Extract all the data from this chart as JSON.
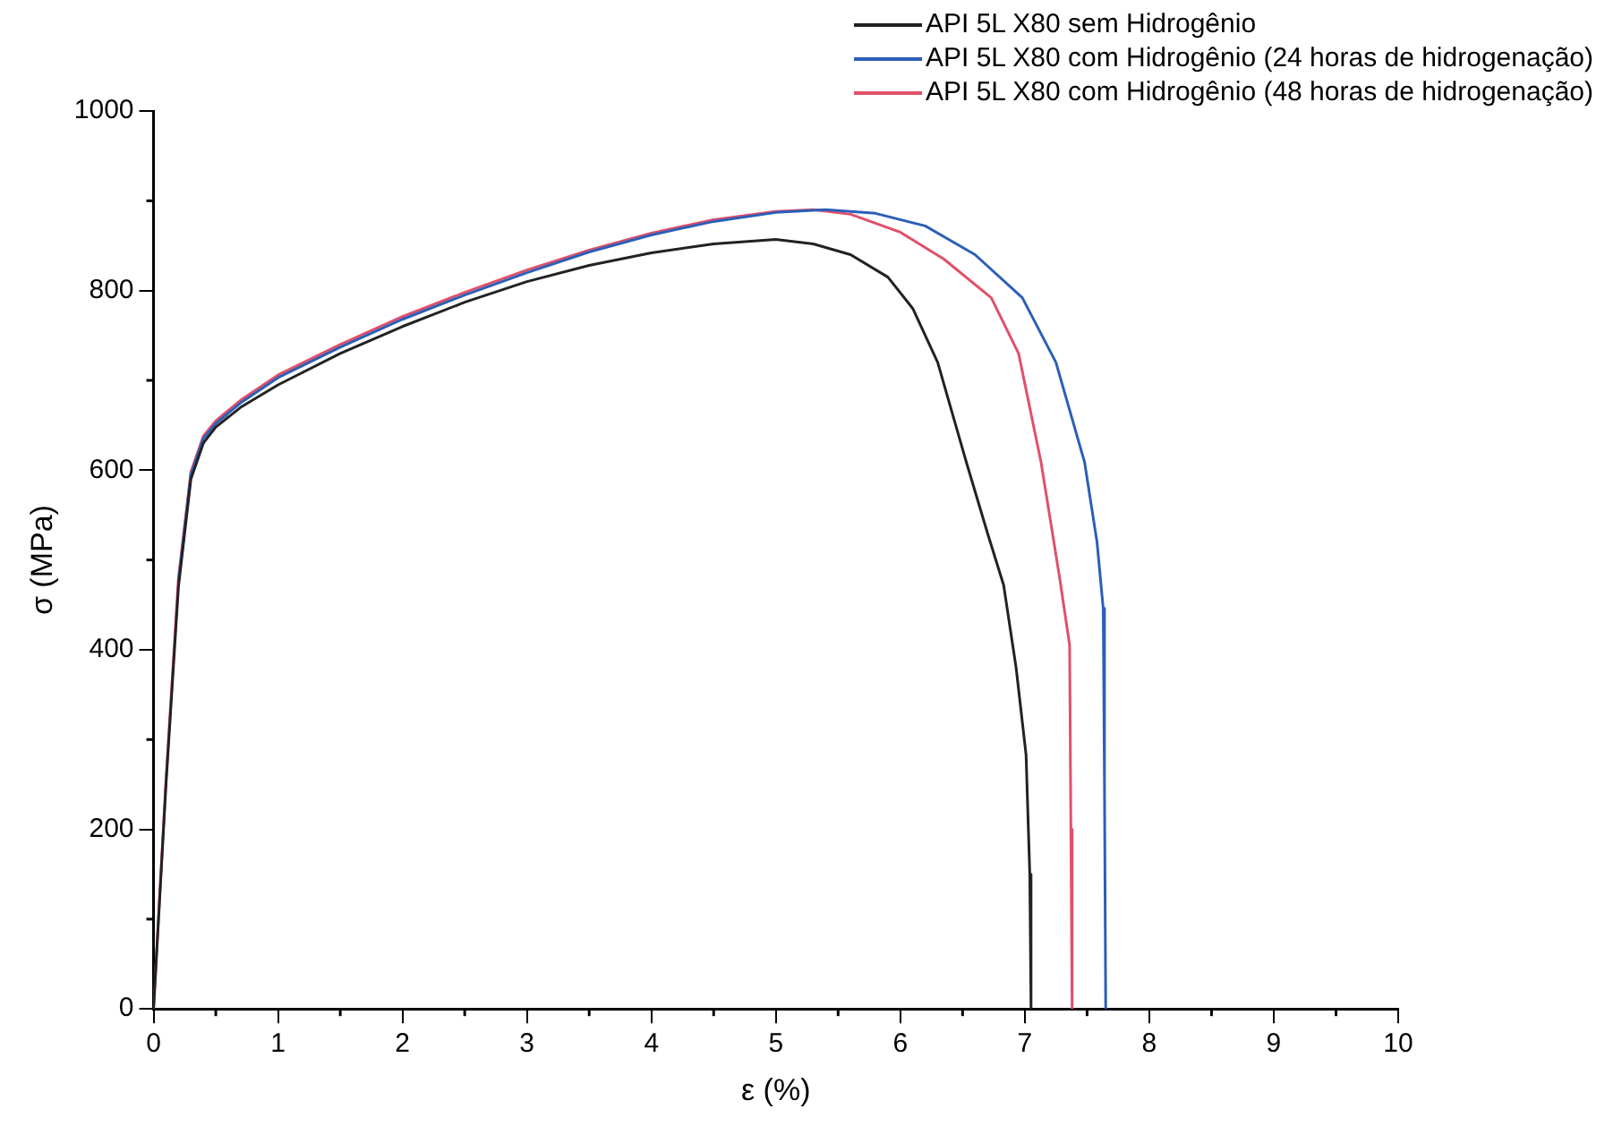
{
  "chart_data": {
    "type": "line",
    "xlabel": "ε (%)",
    "ylabel": "σ (MPa)",
    "xlim": [
      0,
      10
    ],
    "ylim": [
      0,
      1000
    ],
    "xticks": [
      0,
      1,
      2,
      3,
      4,
      5,
      6,
      7,
      8,
      9,
      10
    ],
    "yticks": [
      0,
      200,
      400,
      600,
      800,
      1000
    ],
    "grid": false,
    "legend": "top right",
    "marker": "none",
    "line_style": "solid",
    "series": [
      {
        "name": "API 5L X80 sem Hidrogênio",
        "color": "#222222",
        "x": [
          0,
          0.1,
          0.2,
          0.3,
          0.4,
          0.5,
          0.7,
          1,
          1.5,
          2,
          2.5,
          3,
          3.5,
          4,
          4.5,
          5,
          5.3,
          5.6,
          5.9,
          6.1,
          6.3,
          6.53,
          6.7,
          6.83,
          6.93,
          7.01,
          7.04,
          7.05
        ],
        "values": [
          0,
          250,
          470,
          590,
          630,
          648,
          670,
          695,
          730,
          760,
          787,
          810,
          828,
          842,
          852,
          857,
          852,
          840,
          815,
          780,
          720,
          609,
          530,
          472,
          380,
          283,
          150,
          0
        ]
      },
      {
        "name": "API 5L X80 com Hidrogênio (24 horas de hidrogenação)",
        "color": "#2b5fb8",
        "x": [
          0.2,
          0.3,
          0.4,
          0.5,
          0.7,
          1,
          1.5,
          2,
          2.5,
          3,
          3.5,
          4,
          4.5,
          5,
          5.4,
          5.8,
          6.2,
          6.6,
          6.98,
          7.25,
          7.48,
          7.58,
          7.63,
          7.64,
          7.65
        ],
        "values": [
          475,
          595,
          635,
          652,
          675,
          703,
          737,
          768,
          795,
          820,
          843,
          862,
          877,
          887,
          890,
          886,
          872,
          840,
          792,
          720,
          609,
          520,
          446,
          250,
          0
        ]
      },
      {
        "name": "API 5L X80 com Hidrogênio (48 horas de hidrogenação)",
        "color": "#e0506a",
        "x": [
          0,
          0.1,
          0.2,
          0.3,
          0.4,
          0.5,
          0.7,
          1,
          1.5,
          2,
          2.5,
          3,
          3.5,
          4,
          4.5,
          5,
          5.3,
          5.6,
          6.0,
          6.35,
          6.73,
          6.95,
          7.13,
          7.28,
          7.36,
          7.37,
          7.38
        ],
        "values": [
          0,
          255,
          480,
          598,
          638,
          655,
          678,
          706,
          740,
          771,
          798,
          823,
          845,
          864,
          879,
          888,
          890,
          885,
          865,
          835,
          792,
          730,
          609,
          480,
          405,
          200,
          0
        ]
      }
    ]
  }
}
